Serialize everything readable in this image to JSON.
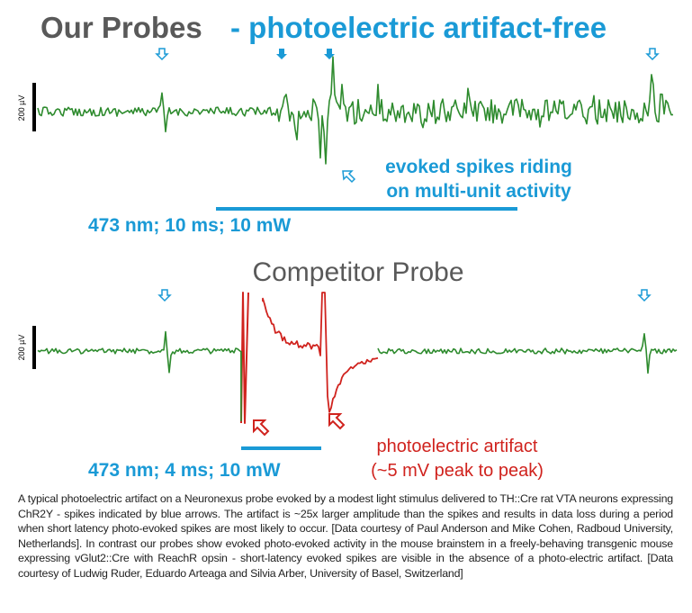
{
  "top": {
    "title_part1": "Our Probes",
    "title_part2": "- photoelectric artifact-free",
    "scale_label": "200 µV",
    "annotation_lines": [
      "evoked spikes riding",
      "on multi-unit activity"
    ],
    "stimulus": "473 nm; 10 ms; 10 mW"
  },
  "bottom": {
    "title": "Competitor Probe",
    "scale_label": "200 µV",
    "annotation_lines": [
      "photoelectric artifact",
      "(~5 mV peak to peak)"
    ],
    "stimulus": "473 nm; 4 ms; 10 mW"
  },
  "caption": "A typical photoelectric artifact on a Neuronexus probe evoked by a modest light stimulus delivered to TH::Cre rat VTA neurons expressing ChR2Y - spikes indicated by blue arrows. The artifact is ~25x larger amplitude than the spikes and results in data loss during a period when short latency photo-evoked spikes are most likely to occur. [Data courtesy of Paul Anderson and Mike Cohen, Radboud University, Netherlands]. In contrast our probes show evoked photo-evoked activity in the mouse brainstem in a freely-behaving transgenic mouse expressing vGlut2::Cre with ReachR opsin - short-latency evoked spikes are visible in the absence of a photo-electric artifact. [Data courtesy of Ludwig Ruder, Eduardo Arteaga and Silvia Arber, University of Basel, Switzerland]"
}
